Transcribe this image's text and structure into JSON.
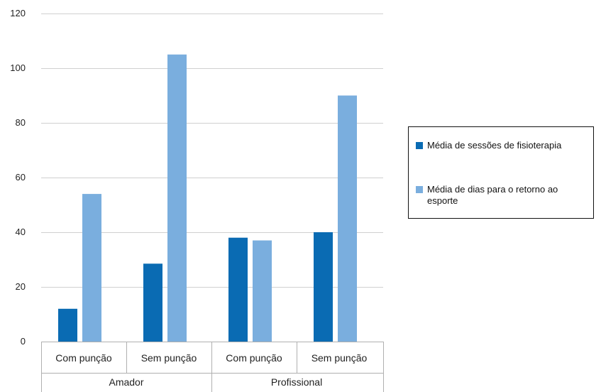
{
  "chart_data": {
    "type": "bar",
    "y_ticks": [
      0,
      20,
      40,
      60,
      80,
      100,
      120
    ],
    "ylim": [
      0,
      120
    ],
    "grid": true,
    "groups": [
      {
        "label": "Amador",
        "categories": [
          "Com punção",
          "Sem punção"
        ]
      },
      {
        "label": "Profissional",
        "categories": [
          "Com punção",
          "Sem punção"
        ]
      }
    ],
    "categories": [
      "Com punção",
      "Sem punção",
      "Com punção",
      "Sem punção"
    ],
    "series": [
      {
        "name": "Média de sessões de fisioterapia",
        "color": "#0a6bb3",
        "values": [
          12,
          28.5,
          38,
          40
        ]
      },
      {
        "name": "Média de dias para o retorno ao esporte",
        "color": "#7aaede",
        "values": [
          54,
          105,
          37,
          90
        ]
      }
    ],
    "legend_position": "right"
  }
}
